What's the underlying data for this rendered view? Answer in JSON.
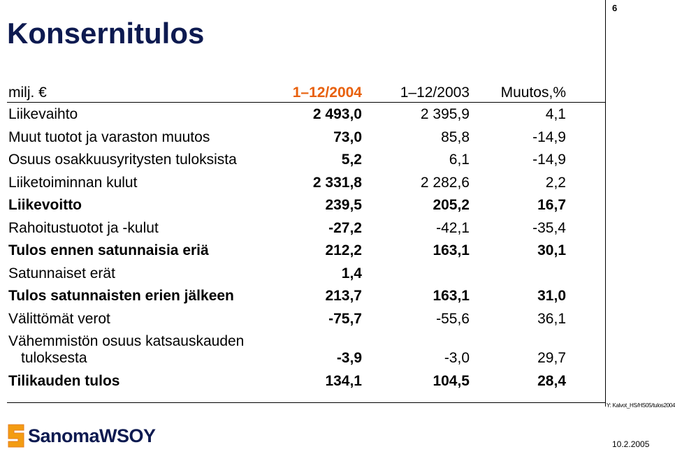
{
  "header": {
    "title": "Konsernitulos",
    "page_number": "6"
  },
  "table": {
    "columns": [
      "milj. €",
      "1–12/2004",
      "1–12/2003",
      "Muutos,%"
    ],
    "rows": [
      {
        "label": "Liikevaihto",
        "cells": [
          "2 493,0",
          "2 395,9",
          "4,1"
        ],
        "bold": false
      },
      {
        "label": "Muut tuotot ja varaston muutos",
        "cells": [
          "73,0",
          "85,8",
          "-14,9"
        ],
        "bold": false
      },
      {
        "label": "Osuus osakkuusyritysten tuloksista",
        "cells": [
          "5,2",
          "6,1",
          "-14,9"
        ],
        "bold": false
      },
      {
        "label": "Liiketoiminnan kulut",
        "cells": [
          "2 331,8",
          "2 282,6",
          "2,2"
        ],
        "bold": false
      },
      {
        "label": "Liikevoitto",
        "cells": [
          "239,5",
          "205,2",
          "16,7"
        ],
        "bold": true
      },
      {
        "label": "Rahoitustuotot ja -kulut",
        "cells": [
          "-27,2",
          "-42,1",
          "-35,4"
        ],
        "bold": false
      },
      {
        "label": "Tulos ennen satunnaisia eriä",
        "cells": [
          "212,2",
          "163,1",
          "30,1"
        ],
        "bold": true
      },
      {
        "label": "Satunnaiset erät",
        "cells": [
          "1,4",
          null,
          null
        ],
        "bold": false
      },
      {
        "label": "Tulos satunnaisten erien jälkeen",
        "cells": [
          "213,7",
          "163,1",
          "31,0"
        ],
        "bold": true
      },
      {
        "label": "Välittömät verot",
        "cells": [
          "-75,7",
          "-55,6",
          "36,1"
        ],
        "bold": false
      },
      {
        "label": "Vähemmistön osuus katsauskauden tuloksesta",
        "cells": [
          "-3,9",
          "-3,0",
          "29,7"
        ],
        "bold": false
      },
      {
        "label": "Tilikauden tulos",
        "cells": [
          "134,1",
          "104,5",
          "28,4"
        ],
        "bold": true
      }
    ]
  },
  "footer": {
    "file_ref": "Y: Kalvot_HS/HS05/tulos2004",
    "logo": "SanomaWSOY",
    "date": "10.2.2005"
  }
}
